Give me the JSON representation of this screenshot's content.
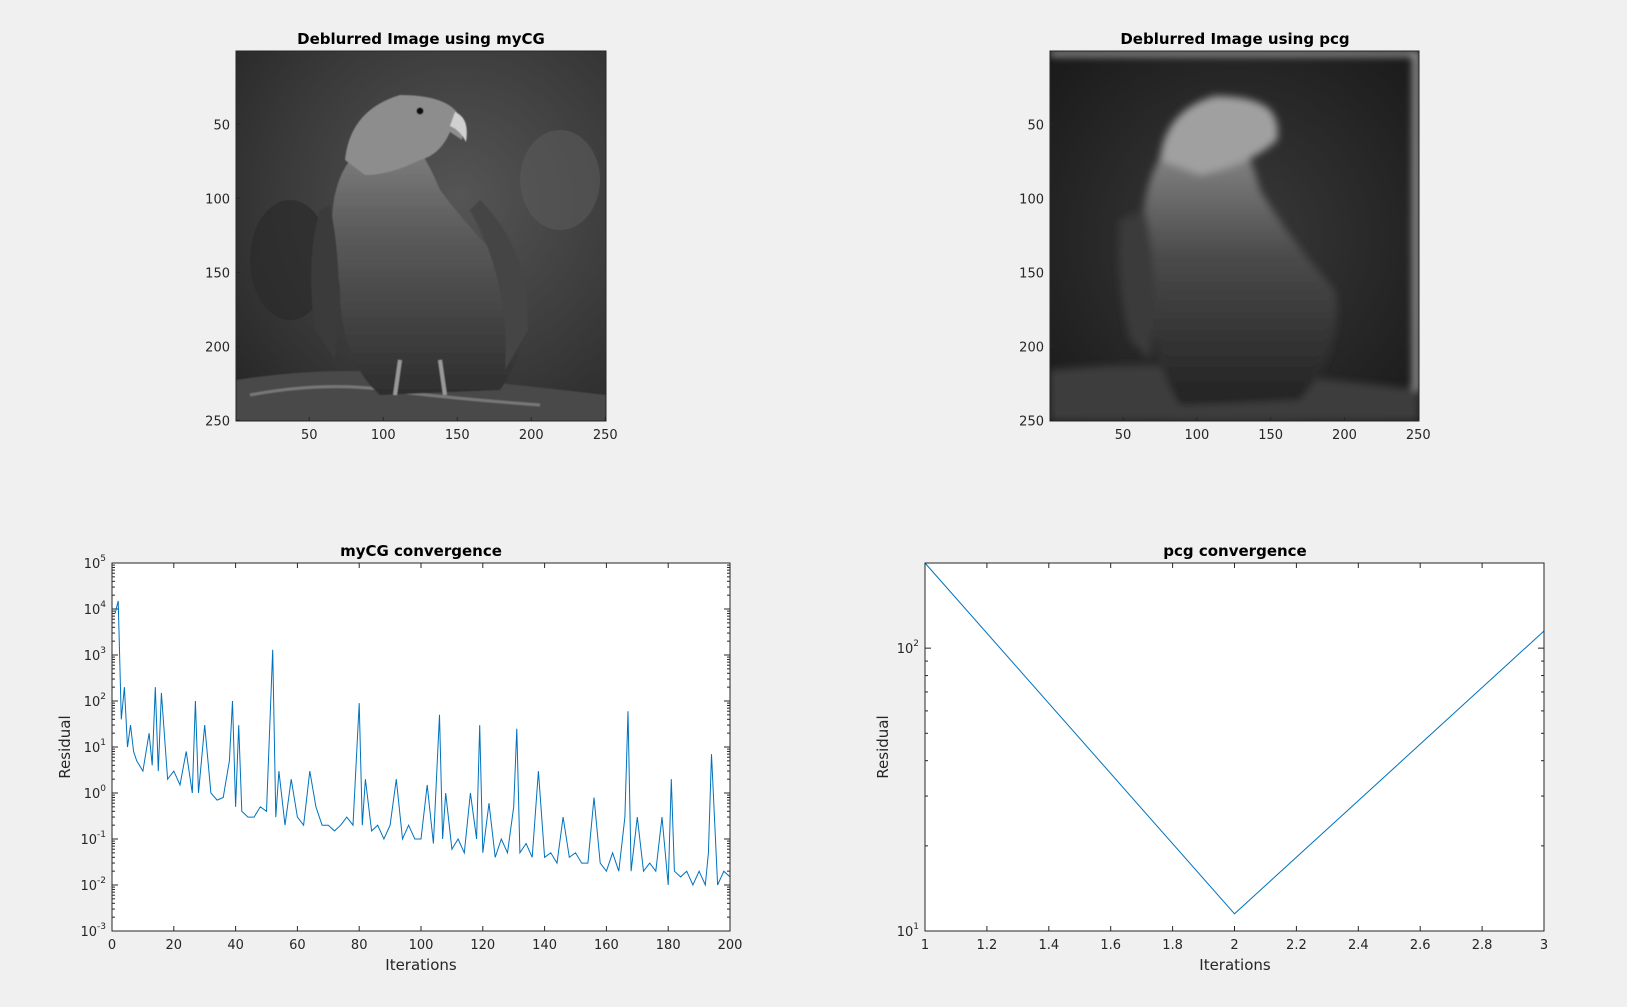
{
  "figure": {
    "background": "#f0f0f0",
    "line_color": "#0072bd"
  },
  "chart_data": [
    {
      "type": "image",
      "id": "mycg_image",
      "title": "Deblurred Image using myCG",
      "xticks": [
        50,
        100,
        150,
        200,
        250
      ],
      "yticks": [
        50,
        100,
        150,
        200,
        250
      ],
      "xlim": [
        0.5,
        250.5
      ],
      "ylim": [
        0.5,
        250.5
      ],
      "colormap": "gray",
      "content": "grayscale eagle photo (sharp, slightly noisy)"
    },
    {
      "type": "image",
      "id": "pcg_image",
      "title": "Deblurred Image using pcg",
      "xticks": [
        50,
        100,
        150,
        200,
        250
      ],
      "yticks": [
        50,
        100,
        150,
        200,
        250
      ],
      "xlim": [
        0.5,
        250.5
      ],
      "ylim": [
        0.5,
        250.5
      ],
      "colormap": "gray",
      "content": "grayscale eagle photo (blurred, ringing artifacts)"
    },
    {
      "type": "line",
      "id": "mycg_conv",
      "title": "myCG convergence",
      "xlabel": "Iterations",
      "ylabel": "Residual",
      "xlim": [
        0,
        200
      ],
      "yscale": "log",
      "ylim": [
        0.001,
        100000
      ],
      "xticks": [
        0,
        20,
        40,
        60,
        80,
        100,
        120,
        140,
        160,
        180,
        200
      ],
      "yticks_exp": [
        -3,
        -2,
        -1,
        0,
        1,
        2,
        3,
        4,
        5
      ],
      "ytick_base": "10",
      "series": [
        {
          "x": [
            1,
            2,
            3,
            4,
            5,
            6,
            7,
            8,
            10,
            12,
            13,
            14,
            15,
            16,
            18,
            20,
            22,
            24,
            26,
            27,
            28,
            30,
            32,
            34,
            36,
            38,
            39,
            40,
            41,
            42,
            44,
            46,
            48,
            50,
            52,
            53,
            54,
            56,
            58,
            60,
            62,
            64,
            66,
            68,
            70,
            72,
            74,
            76,
            78,
            80,
            81,
            82,
            84,
            86,
            88,
            90,
            92,
            94,
            96,
            98,
            100,
            102,
            104,
            106,
            107,
            108,
            110,
            112,
            114,
            116,
            118,
            119,
            120,
            122,
            124,
            126,
            128,
            130,
            131,
            132,
            134,
            136,
            138,
            140,
            142,
            144,
            146,
            148,
            150,
            152,
            154,
            156,
            158,
            160,
            162,
            164,
            166,
            167,
            168,
            170,
            172,
            174,
            176,
            178,
            180,
            181,
            182,
            184,
            186,
            188,
            190,
            192,
            193,
            194,
            196,
            198,
            200
          ],
          "y": [
            8000,
            15000,
            40,
            200,
            10,
            30,
            8,
            5,
            3,
            20,
            4,
            200,
            3,
            150,
            2,
            3,
            1.5,
            8,
            1,
            100,
            1,
            30,
            1,
            0.7,
            0.8,
            5,
            100,
            0.5,
            30,
            0.4,
            0.3,
            0.3,
            0.5,
            0.4,
            1300,
            0.3,
            3,
            0.2,
            2,
            0.3,
            0.2,
            3,
            0.5,
            0.2,
            0.2,
            0.15,
            0.2,
            0.3,
            0.2,
            90,
            0.2,
            2,
            0.15,
            0.2,
            0.1,
            0.2,
            2,
            0.1,
            0.2,
            0.1,
            0.1,
            1.5,
            0.08,
            50,
            0.1,
            1,
            0.06,
            0.1,
            0.05,
            1,
            0.1,
            30,
            0.05,
            0.6,
            0.04,
            0.1,
            0.05,
            0.5,
            25,
            0.05,
            0.08,
            0.04,
            3,
            0.04,
            0.05,
            0.03,
            0.3,
            0.04,
            0.05,
            0.03,
            0.03,
            0.8,
            0.03,
            0.02,
            0.05,
            0.02,
            0.3,
            60,
            0.02,
            0.3,
            0.02,
            0.03,
            0.02,
            0.3,
            0.01,
            2,
            0.02,
            0.015,
            0.02,
            0.01,
            0.02,
            0.01,
            0.05,
            7,
            0.01,
            0.02,
            0.015
          ]
        }
      ]
    },
    {
      "type": "line",
      "id": "pcg_conv",
      "title": "pcg convergence",
      "xlabel": "Iterations",
      "ylabel": "Residual",
      "xlim": [
        1,
        3
      ],
      "yscale": "log",
      "ylim": [
        10,
        200
      ],
      "xticks": [
        1,
        1.2,
        1.4,
        1.6,
        1.8,
        2,
        2.2,
        2.4,
        2.6,
        2.8,
        3
      ],
      "yticks_exp": [
        1,
        2
      ],
      "ytick_base": "10",
      "series": [
        {
          "x": [
            1,
            2,
            3
          ],
          "y": [
            200,
            11.5,
            115
          ]
        }
      ]
    }
  ]
}
